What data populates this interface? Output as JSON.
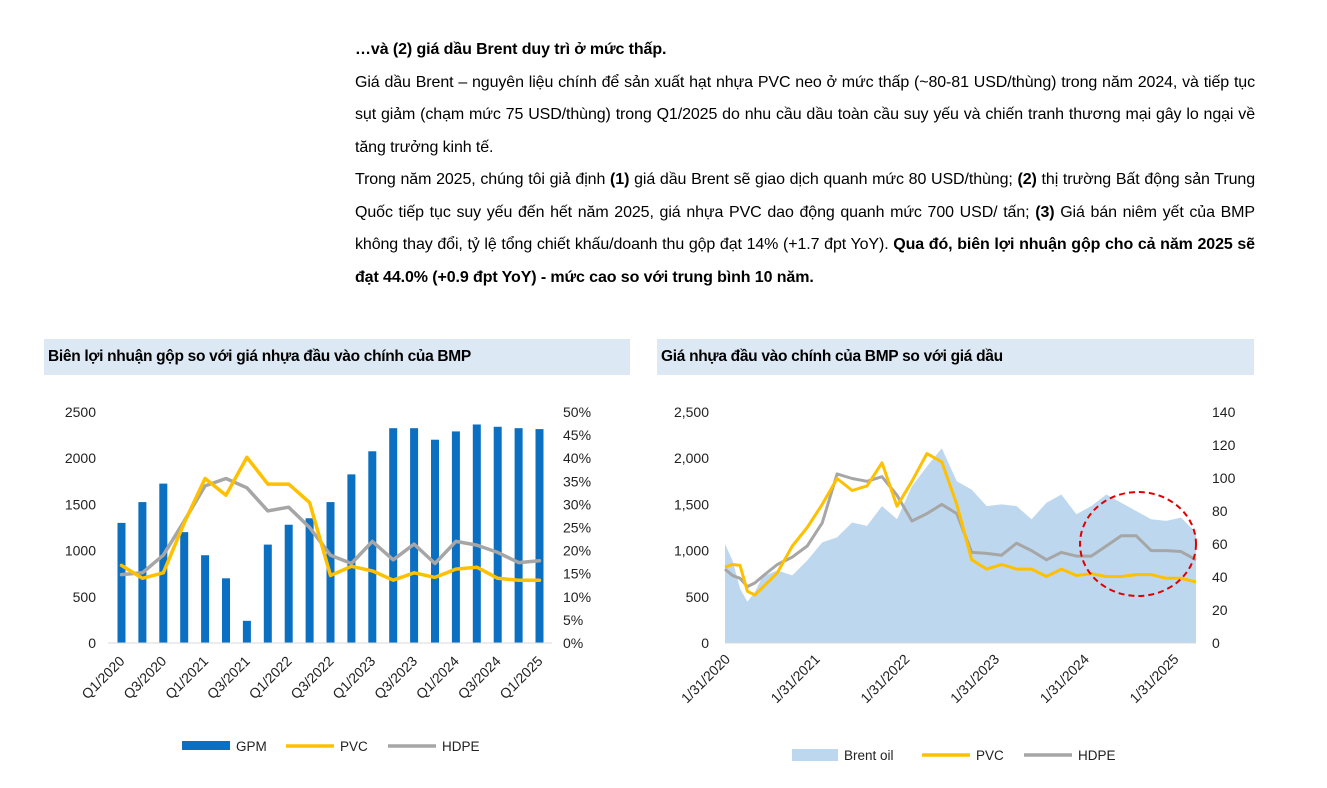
{
  "text": {
    "heading": "…và (2) giá dầu Brent duy trì ở mức thấp.",
    "p1": "Giá dầu Brent – nguyên liệu chính để sản xuất hạt nhựa PVC neo ở mức thấp (~80-81 USD/thùng) trong năm 2024, và tiếp tục sụt giảm (chạm mức 75 USD/thùng) trong Q1/2025 do nhu cầu dầu toàn cầu suy yếu và chiến tranh thương mại gây lo ngại về tăng trưởng kinh tế.",
    "p2_a": "Trong năm 2025, chúng tôi giả định ",
    "p2_b": "(1)",
    "p2_c": " giá dầu Brent sẽ giao dịch quanh mức 80 USD/thùng; ",
    "p2_d": "(2)",
    "p2_e": " thị trường Bất động sản Trung Quốc tiếp tục suy yếu đến hết năm 2025, giá nhựa PVC dao động quanh mức 700 USD/ tấn; ",
    "p2_f": "(3)",
    "p2_g": " Giá bán niêm yết của BMP không thay đổi, tỷ lệ tổng chiết khấu/doanh thu gộp đạt 14% (+1.7 đpt YoY). ",
    "p2_h": "Qua đó, biên lợi nhuận gộp cho cả năm 2025 sẽ đạt 44.0% (+0.9 đpt YoY) - mức cao so với trung bình 10 năm."
  },
  "chart_data": [
    {
      "type": "bar",
      "title": "Biên lợi nhuận gộp so với giá nhựa đầu vào chính của BMP",
      "categories": [
        "Q1/2020",
        "Q2/2020",
        "Q3/2020",
        "Q4/2020",
        "Q1/2021",
        "Q2/2021",
        "Q3/2021",
        "Q4/2021",
        "Q1/2022",
        "Q2/2022",
        "Q3/2022",
        "Q4/2022",
        "Q1/2023",
        "Q2/2023",
        "Q3/2023",
        "Q4/2023",
        "Q1/2024",
        "Q2/2024",
        "Q3/2024",
        "Q4/2024",
        "Q1/2025"
      ],
      "x_tick_labels": [
        "Q1/2020",
        "Q3/2020",
        "Q1/2021",
        "Q3/2021",
        "Q1/2022",
        "Q3/2022",
        "Q1/2023",
        "Q3/2023",
        "Q1/2024",
        "Q3/2024",
        "Q1/2025"
      ],
      "ylim_left": [
        0,
        2500
      ],
      "yticks_left": [
        "0",
        "500",
        "1000",
        "1500",
        "2000",
        "2500"
      ],
      "ylim_right": [
        0,
        50
      ],
      "yticks_right": [
        "0%",
        "5%",
        "10%",
        "15%",
        "20%",
        "25%",
        "30%",
        "35%",
        "40%",
        "45%",
        "50%"
      ],
      "series": [
        {
          "name": "GPM",
          "kind": "bar",
          "axis": "right",
          "color": "#0b6fc2",
          "values": [
            26,
            30.5,
            34.5,
            24,
            19,
            14,
            4.8,
            21.3,
            25.6,
            27,
            30.5,
            36.5,
            41.5,
            46.5,
            46.5,
            44,
            45.8,
            47.3,
            46.8,
            46.5,
            46.3
          ]
        },
        {
          "name": "PVC",
          "kind": "line",
          "axis": "left",
          "color": "#ffc000",
          "x": [
            0,
            1,
            2,
            3,
            4,
            5,
            6,
            7,
            8,
            9,
            10,
            11,
            12,
            13,
            14,
            15,
            16,
            17,
            18,
            19,
            20
          ],
          "values": [
            840,
            700,
            760,
            1300,
            1780,
            1600,
            2010,
            1720,
            1720,
            1520,
            730,
            830,
            780,
            680,
            760,
            710,
            800,
            820,
            700,
            680,
            680
          ]
        },
        {
          "name": "HDPE",
          "kind": "line",
          "axis": "left",
          "color": "#a6a6a6",
          "x": [
            0,
            1,
            2,
            3,
            4,
            5,
            6,
            7,
            8,
            9,
            10,
            11,
            12,
            13,
            14,
            15,
            16,
            17,
            18,
            19,
            20
          ],
          "values": [
            740,
            760,
            950,
            1320,
            1700,
            1780,
            1680,
            1430,
            1470,
            1250,
            950,
            860,
            1100,
            900,
            1070,
            860,
            1100,
            1060,
            980,
            870,
            890
          ]
        }
      ],
      "legend": [
        "GPM",
        "PVC",
        "HDPE"
      ],
      "legend_position": "bottom",
      "grid": false
    },
    {
      "type": "area",
      "title": "Giá nhựa đầu vào chính của BMP so với giá dầu",
      "x_tick_labels": [
        "1/31/2020",
        "1/31/2021",
        "1/31/2022",
        "1/31/2023",
        "1/31/2024",
        "1/31/2025"
      ],
      "xlim": [
        "2020-01-31",
        "2025-04-30"
      ],
      "ylim_left": [
        0,
        2500
      ],
      "yticks_left": [
        "0",
        "500",
        "1,000",
        "1,500",
        "2,000",
        "2,500"
      ],
      "ylim_right": [
        0,
        140
      ],
      "yticks_right": [
        "0",
        "20",
        "40",
        "60",
        "80",
        "100",
        "120",
        "140"
      ],
      "x": [
        "2020-01",
        "2020-02",
        "2020-03",
        "2020-04",
        "2020-05",
        "2020-06",
        "2020-08",
        "2020-10",
        "2020-12",
        "2021-02",
        "2021-04",
        "2021-06",
        "2021-08",
        "2021-10",
        "2021-12",
        "2022-02",
        "2022-04",
        "2022-06",
        "2022-08",
        "2022-10",
        "2022-12",
        "2023-02",
        "2023-04",
        "2023-06",
        "2023-08",
        "2023-10",
        "2023-12",
        "2024-02",
        "2024-04",
        "2024-06",
        "2024-08",
        "2024-10",
        "2024-12",
        "2025-02",
        "2025-04"
      ],
      "series": [
        {
          "name": "Brent oil",
          "kind": "area",
          "axis": "right",
          "color": "#bdd7ee",
          "values": [
            60,
            50,
            33,
            25,
            31,
            40,
            44,
            41,
            50,
            61,
            64,
            73,
            71,
            83,
            75,
            95,
            107,
            118,
            98,
            93,
            83,
            84,
            83,
            75,
            85,
            90,
            78,
            83,
            90,
            85,
            80,
            75,
            74,
            76,
            67
          ]
        },
        {
          "name": "PVC",
          "kind": "line",
          "axis": "left",
          "color": "#ffc000",
          "values": [
            820,
            850,
            840,
            560,
            520,
            600,
            760,
            1050,
            1250,
            1500,
            1780,
            1650,
            1700,
            1950,
            1480,
            1750,
            2050,
            1960,
            1500,
            900,
            800,
            850,
            800,
            800,
            720,
            800,
            730,
            750,
            720,
            720,
            740,
            740,
            700,
            700,
            660
          ]
        },
        {
          "name": "HDPE",
          "kind": "line",
          "axis": "left",
          "color": "#a6a6a6",
          "values": [
            800,
            730,
            700,
            610,
            650,
            720,
            850,
            930,
            1050,
            1300,
            1830,
            1780,
            1750,
            1800,
            1600,
            1320,
            1400,
            1500,
            1400,
            980,
            970,
            950,
            1080,
            1000,
            900,
            980,
            940,
            940,
            1050,
            1160,
            1160,
            1000,
            1000,
            990,
            900
          ]
        }
      ],
      "annotation": "red dashed ellipse",
      "legend": [
        "Brent oil",
        "PVC",
        "HDPE"
      ],
      "legend_position": "bottom",
      "grid": false
    }
  ]
}
